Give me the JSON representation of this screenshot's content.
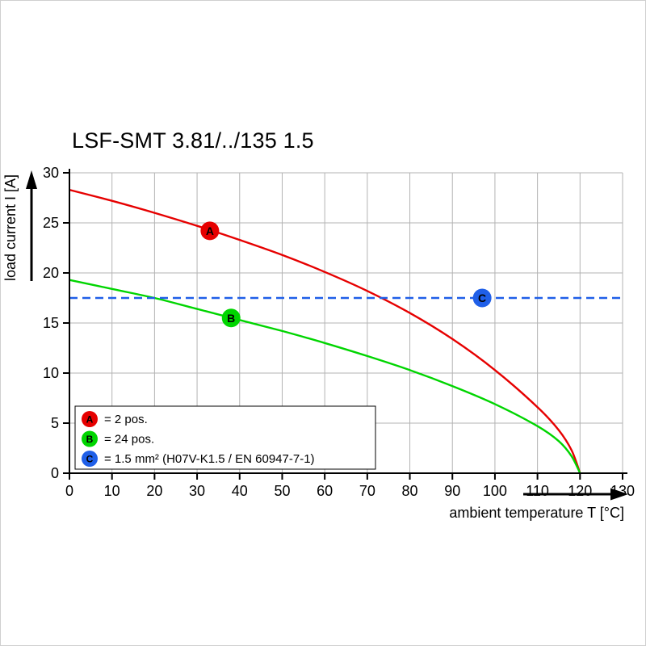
{
  "chart_data": {
    "type": "line",
    "title": "LSF-SMT 3.81/../135 1.5",
    "xlabel": "ambient temperature T [°C]",
    "ylabel": "load current I [A]",
    "xlim": [
      0,
      130
    ],
    "ylim": [
      0,
      30
    ],
    "xticks": [
      0,
      10,
      20,
      30,
      40,
      50,
      60,
      70,
      80,
      90,
      100,
      110,
      120,
      130
    ],
    "yticks": [
      0,
      5,
      10,
      15,
      20,
      25,
      30
    ],
    "grid": true,
    "grid_color": "#b3b3b3",
    "axis_color": "#000000",
    "legend_position": "bottom-left",
    "series": [
      {
        "name": "A",
        "legend_label": "= 2 pos.",
        "color": "#e60000",
        "line_style": "solid",
        "points": [
          [
            0,
            28.3
          ],
          [
            10,
            27.2
          ],
          [
            20,
            26.0
          ],
          [
            30,
            24.7
          ],
          [
            40,
            23.3
          ],
          [
            50,
            21.8
          ],
          [
            60,
            20.1
          ],
          [
            70,
            18.2
          ],
          [
            80,
            16.0
          ],
          [
            90,
            13.4
          ],
          [
            100,
            10.3
          ],
          [
            110,
            6.6
          ],
          [
            115,
            4.3
          ],
          [
            118,
            2.3
          ],
          [
            120,
            0
          ]
        ],
        "marker": {
          "x": 33,
          "y": 24.2,
          "label": "A"
        }
      },
      {
        "name": "B",
        "legend_label": "= 24 pos.",
        "color": "#00d500",
        "line_style": "solid",
        "points": [
          [
            0,
            19.3
          ],
          [
            10,
            18.4
          ],
          [
            20,
            17.5
          ],
          [
            30,
            16.4
          ],
          [
            40,
            15.3
          ],
          [
            50,
            14.2
          ],
          [
            60,
            13.0
          ],
          [
            70,
            11.7
          ],
          [
            80,
            10.3
          ],
          [
            90,
            8.7
          ],
          [
            100,
            6.9
          ],
          [
            110,
            4.7
          ],
          [
            115,
            3.2
          ],
          [
            118,
            1.7
          ],
          [
            120,
            0
          ]
        ],
        "marker": {
          "x": 38,
          "y": 15.5,
          "label": "B"
        }
      },
      {
        "name": "C",
        "legend_label": "= 1.5 mm² (H07V-K1.5 / EN 60947-7-1)",
        "color": "#1f5fe8",
        "line_style": "dashed",
        "points": [
          [
            0,
            17.5
          ],
          [
            130,
            17.5
          ]
        ],
        "marker": {
          "x": 97,
          "y": 17.5,
          "label": "C"
        }
      }
    ]
  }
}
